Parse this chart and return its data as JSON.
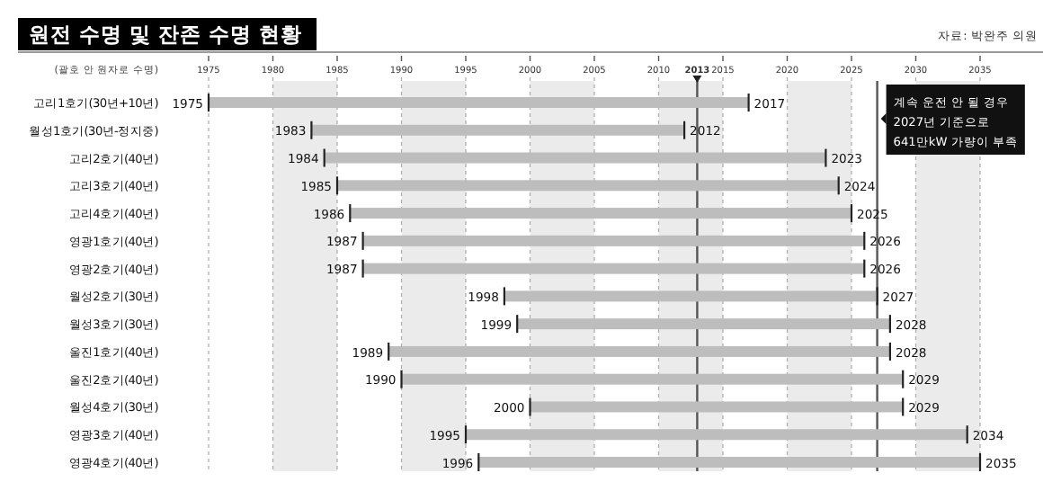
{
  "chart_data": {
    "type": "bar",
    "orientation": "horizontal",
    "title": "원전 수명 및 잔존 수명 현황",
    "ylabel": "(괄호 안 원자로 수명)",
    "categories": [
      "고리1호기(30년+10년)",
      "월성1호기(30년-정지중)",
      "고리2호기(40년)",
      "고리3호기(40년)",
      "고리4호기(40년)",
      "영광1호기(40년)",
      "영광2호기(40년)",
      "월성2호기(30년)",
      "월성3호기(30년)",
      "울진1호기(40년)",
      "울진2호기(40년)",
      "월성4호기(30년)",
      "영광3호기(40년)",
      "영광4호기(40년)"
    ],
    "base": [
      1975,
      1983,
      1984,
      1985,
      1986,
      1987,
      1987,
      1998,
      1999,
      1989,
      1990,
      2000,
      1995,
      1996
    ],
    "values": [
      42,
      29,
      39,
      39,
      39,
      39,
      39,
      29,
      29,
      39,
      39,
      29,
      39,
      39
    ],
    "color": "#bdbdbd",
    "xlim": [
      1975,
      2035
    ],
    "xticks": [
      1975,
      1980,
      1985,
      1990,
      1995,
      2000,
      2005,
      2010,
      2013,
      2015,
      2020,
      2025,
      2030,
      2035
    ],
    "grid": "x",
    "bands": [
      {
        "axis": "x",
        "from": 1980,
        "to": 1985,
        "color": "#ebebeb"
      },
      {
        "axis": "x",
        "from": 1990,
        "to": 1995,
        "color": "#ebebeb"
      },
      {
        "axis": "x",
        "from": 2000,
        "to": 2005,
        "color": "#ebebeb"
      },
      {
        "axis": "x",
        "from": 2010,
        "to": 2015,
        "color": "#ebebeb"
      },
      {
        "axis": "x",
        "from": 2020,
        "to": 2025,
        "color": "#ebebeb"
      },
      {
        "axis": "x",
        "from": 2030,
        "to": 2035,
        "color": "#ebebeb"
      }
    ],
    "ref_lines": [
      {
        "axis": "x",
        "value": 2013,
        "color": "#555555"
      },
      {
        "axis": "x",
        "value": 2027,
        "color": "#555555",
        "label": "계속 운전 안 될 경우\n2027년 기준으로\n641만kW 가량이 부족"
      }
    ],
    "annotations": [
      "자료: 박완주 의원",
      {
        "text": "1975",
        "x": 1975,
        "y": "고리1호기(30년+10년)"
      },
      {
        "text": "2017",
        "x": 2017,
        "y": "고리1호기(30년+10년)"
      },
      {
        "text": "1983",
        "x": 1983,
        "y": "월성1호기(30년-정지중)"
      },
      {
        "text": "2012",
        "x": 2012,
        "y": "월성1호기(30년-정지중)"
      },
      {
        "text": "1984",
        "x": 1984,
        "y": "고리2호기(40년)"
      },
      {
        "text": "2023",
        "x": 2023,
        "y": "고리2호기(40년)"
      },
      {
        "text": "1985",
        "x": 1985,
        "y": "고리3호기(40년)"
      },
      {
        "text": "2024",
        "x": 2024,
        "y": "고리3호기(40년)"
      },
      {
        "text": "1986",
        "x": 1986,
        "y": "고리4호기(40년)"
      },
      {
        "text": "2025",
        "x": 2025,
        "y": "고리4호기(40년)"
      },
      {
        "text": "1987",
        "x": 1987,
        "y": "영광1호기(40년)"
      },
      {
        "text": "2026",
        "x": 2026,
        "y": "영광1호기(40년)"
      },
      {
        "text": "1987",
        "x": 1987,
        "y": "영광2호기(40년)"
      },
      {
        "text": "2026",
        "x": 2026,
        "y": "영광2호기(40년)"
      },
      {
        "text": "1998",
        "x": 1998,
        "y": "월성2호기(30년)"
      },
      {
        "text": "2027",
        "x": 2027,
        "y": "월성2호기(30년)"
      },
      {
        "text": "1999",
        "x": 1999,
        "y": "월성3호기(30년)"
      },
      {
        "text": "2028",
        "x": 2028,
        "y": "월성3호기(30년)"
      },
      {
        "text": "1989",
        "x": 1989,
        "y": "울진1호기(40년)"
      },
      {
        "text": "2028",
        "x": 2028,
        "y": "울진1호기(40년)"
      },
      {
        "text": "1990",
        "x": 1990,
        "y": "울진2호기(40년)"
      },
      {
        "text": "2029",
        "x": 2029,
        "y": "울진2호기(40년)"
      },
      {
        "text": "2000",
        "x": 2000,
        "y": "월성4호기(30년)"
      },
      {
        "text": "2029",
        "x": 2029,
        "y": "월성4호기(30년)"
      },
      {
        "text": "1995",
        "x": 1995,
        "y": "영광3호기(40년)"
      },
      {
        "text": "2034",
        "x": 2034,
        "y": "영광3호기(40년)"
      },
      {
        "text": "1996",
        "x": 1996,
        "y": "영광4호기(40년)"
      },
      {
        "text": "2035",
        "x": 2035,
        "y": "영광4호기(40년)"
      }
    ]
  }
}
